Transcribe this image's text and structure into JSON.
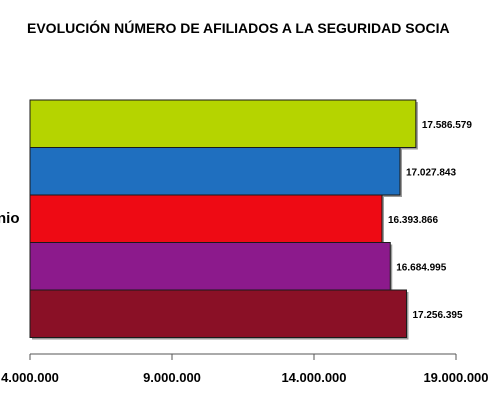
{
  "chart_data": {
    "type": "bar",
    "orientation": "horizontal",
    "title": "EVOLUCIÓN NÚMERO DE AFILIADOS A LA SEGURIDAD SOCIA",
    "category_label": "nio",
    "xlim": [
      4000000,
      19000000
    ],
    "xticks": [
      4000000,
      9000000,
      14000000,
      19000000
    ],
    "xtick_labels": [
      "4.000.000",
      "9.000.000",
      "14.000.000",
      "19.000.000"
    ],
    "values": [
      17586579,
      17027843,
      16393866,
      16684995,
      17256395
    ],
    "value_labels": [
      "17.586.579",
      "17.027.843",
      "16.393.866",
      "16.684.995",
      "17.256.395"
    ],
    "colors": [
      "#b5d400",
      "#1f6fbf",
      "#ee0a14",
      "#8c1a8c",
      "#8a1026"
    ],
    "grid": false
  }
}
